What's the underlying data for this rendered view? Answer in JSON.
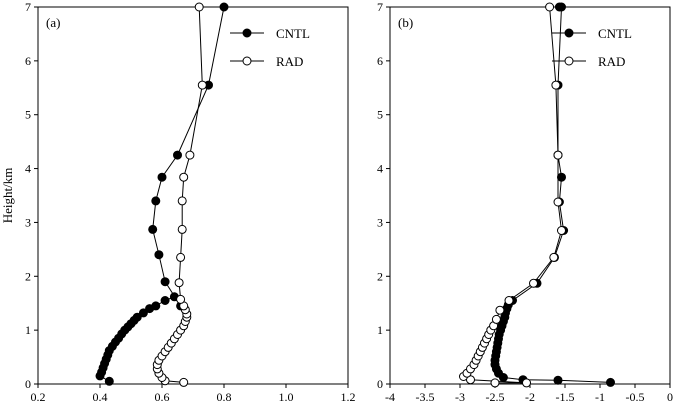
{
  "chart_data": [
    {
      "type": "line",
      "panel_label": "(a)",
      "title": "",
      "xlabel": "",
      "ylabel": "Height/km",
      "xlim": [
        0.2,
        1.2
      ],
      "ylim": [
        0,
        7
      ],
      "xticks": [
        "0.2",
        "0.4",
        "0.6",
        "0.8",
        "1.0",
        "1.2"
      ],
      "yticks": [
        "0",
        "1",
        "2",
        "3",
        "4",
        "5",
        "6",
        "7"
      ],
      "legend_position": "top-right",
      "series": [
        {
          "name": "CNTL",
          "marker": "filled-circle",
          "x": [
            0.43,
            0.4,
            0.405,
            0.41,
            0.415,
            0.42,
            0.425,
            0.43,
            0.44,
            0.45,
            0.46,
            0.47,
            0.48,
            0.49,
            0.5,
            0.51,
            0.52,
            0.54,
            0.56,
            0.58,
            0.61,
            0.64,
            0.66,
            0.61,
            0.59,
            0.57,
            0.58,
            0.6,
            0.65,
            0.75,
            0.8
          ],
          "y": [
            0.05,
            0.15,
            0.22,
            0.3,
            0.38,
            0.46,
            0.54,
            0.62,
            0.7,
            0.78,
            0.85,
            0.93,
            1.0,
            1.06,
            1.12,
            1.18,
            1.24,
            1.32,
            1.4,
            1.45,
            1.55,
            1.62,
            1.45,
            1.9,
            2.4,
            2.87,
            3.4,
            3.84,
            4.25,
            5.55,
            7.0
          ]
        },
        {
          "name": "RAD",
          "marker": "open-circle",
          "x": [
            0.67,
            0.61,
            0.6,
            0.59,
            0.585,
            0.585,
            0.59,
            0.6,
            0.61,
            0.62,
            0.63,
            0.64,
            0.65,
            0.66,
            0.67,
            0.675,
            0.68,
            0.68,
            0.675,
            0.67,
            0.66,
            0.655,
            0.66,
            0.665,
            0.665,
            0.67,
            0.69,
            0.73,
            0.72
          ],
          "y": [
            0.03,
            0.06,
            0.12,
            0.2,
            0.28,
            0.36,
            0.44,
            0.52,
            0.6,
            0.68,
            0.76,
            0.84,
            0.92,
            1.0,
            1.08,
            1.16,
            1.24,
            1.3,
            1.38,
            1.45,
            1.57,
            1.88,
            2.35,
            2.87,
            3.4,
            3.84,
            4.25,
            5.55,
            7.0
          ]
        }
      ]
    },
    {
      "type": "line",
      "panel_label": "(b)",
      "title": "",
      "xlabel": "",
      "ylabel": "",
      "xlim": [
        -4,
        0
      ],
      "ylim": [
        0,
        7
      ],
      "xticks": [
        "-4",
        "-3.5",
        "-3",
        "-2.5",
        "-2",
        "-1.5",
        "-1",
        "-0.5",
        "0"
      ],
      "yticks": [
        "0",
        "1",
        "2",
        "3",
        "4",
        "5",
        "6",
        "7"
      ],
      "legend_position": "top-right",
      "series": [
        {
          "name": "CNTL",
          "marker": "filled-circle",
          "x": [
            -0.85,
            -1.6,
            -2.1,
            -2.38,
            -2.45,
            -2.48,
            -2.5,
            -2.5,
            -2.49,
            -2.48,
            -2.47,
            -2.46,
            -2.45,
            -2.44,
            -2.42,
            -2.4,
            -2.38,
            -2.36,
            -2.35,
            -2.33,
            -2.31,
            -2.25,
            -1.9,
            -1.65,
            -1.52,
            -1.58,
            -1.55,
            -1.6,
            -1.6,
            -1.55,
            -1.58
          ],
          "y": [
            0.03,
            0.07,
            0.08,
            0.12,
            0.2,
            0.28,
            0.36,
            0.44,
            0.52,
            0.6,
            0.68,
            0.76,
            0.84,
            0.92,
            1.0,
            1.08,
            1.16,
            1.24,
            1.32,
            1.4,
            1.47,
            1.55,
            1.87,
            2.35,
            2.85,
            3.38,
            3.84,
            4.25,
            5.55,
            7.0,
            7.0
          ]
        },
        {
          "name": "RAD",
          "marker": "open-circle",
          "x": [
            -2.5,
            -2.05,
            -2.85,
            -2.95,
            -2.9,
            -2.85,
            -2.8,
            -2.77,
            -2.74,
            -2.71,
            -2.68,
            -2.65,
            -2.62,
            -2.59,
            -2.56,
            -2.52,
            -2.48,
            -2.43,
            -2.3,
            -1.95,
            -1.66,
            -1.55,
            -1.6,
            -1.6,
            -1.63,
            -1.72
          ],
          "y": [
            0.02,
            0.02,
            0.08,
            0.14,
            0.2,
            0.28,
            0.36,
            0.44,
            0.52,
            0.6,
            0.68,
            0.76,
            0.84,
            0.92,
            1.0,
            1.08,
            1.2,
            1.37,
            1.55,
            1.87,
            2.35,
            2.85,
            3.38,
            4.25,
            5.55,
            7.0
          ]
        }
      ]
    }
  ]
}
